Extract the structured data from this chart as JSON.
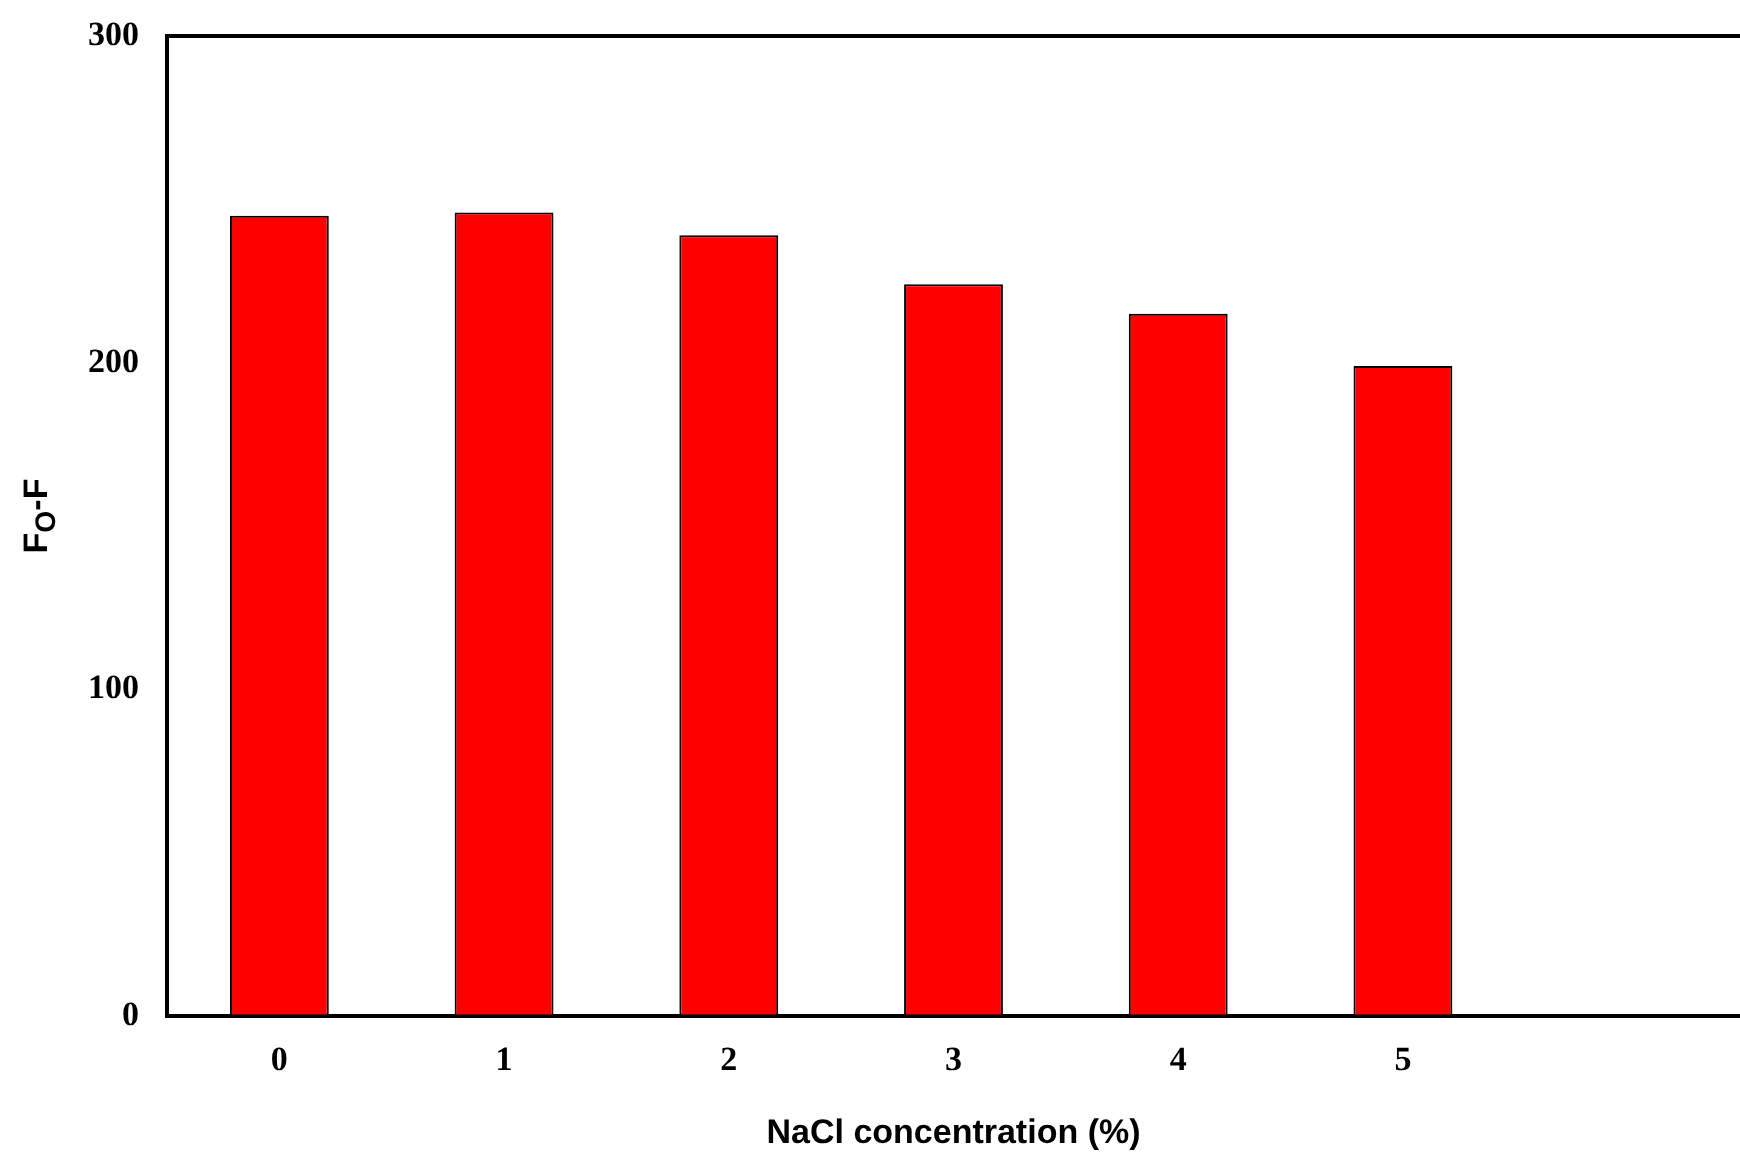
{
  "chart_data": {
    "type": "bar",
    "xlabel": "NaCl concentration (%)",
    "ylabel": "F$_{O}$-F",
    "categories": [
      "0",
      "1",
      "2",
      "3",
      "4",
      "5",
      null
    ],
    "values": [
      245,
      246,
      239,
      224,
      215,
      199,
      null
    ],
    "color": "#ff0000",
    "ylim": [
      0,
      300
    ],
    "yticks": [
      0,
      100,
      200,
      300
    ],
    "grid": false,
    "legend": false
  }
}
